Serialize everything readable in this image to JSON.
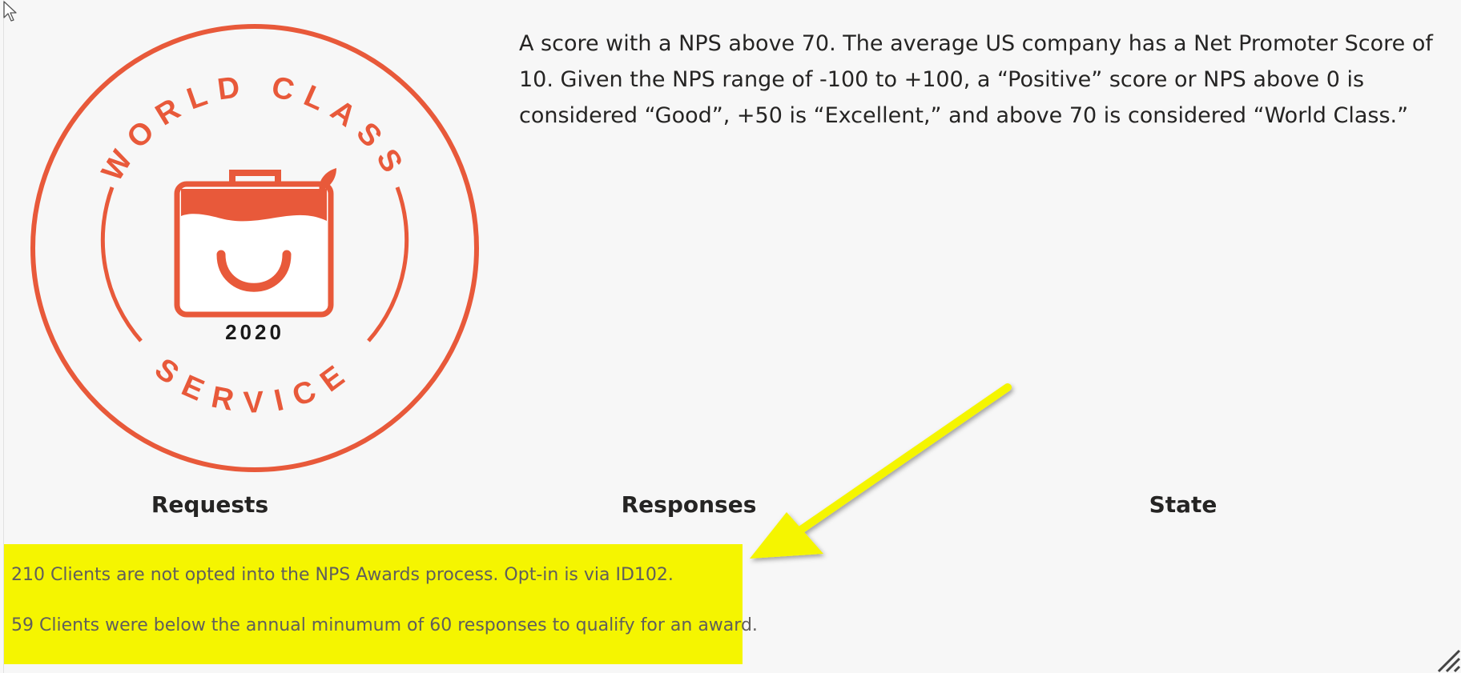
{
  "badge": {
    "top_text": "WORLD CLASS",
    "bottom_text": "SERVICE",
    "year": "2020",
    "accent_color": "#e8593a",
    "year_color": "#1a1a1a"
  },
  "nps_description": "A score with a NPS above 70. The average US company has a Net Promoter Score of 10. Given the NPS range of -100 to +100, a “Positive” score or NPS above 0 is considered “Good”, +50 is “Excellent,” and above 70 is considered “World Class.”",
  "columns": {
    "requests": "Requests",
    "responses": "Responses",
    "state": "State"
  },
  "notice": {
    "background": "#f5f500",
    "lines": [
      "210 Clients are not opted into the NPS Awards process. Opt-in is via ID102.",
      "59 Clients were below the annual minumum of 60 responses to qualify for an award."
    ]
  },
  "icons": {
    "cursor": "mouse-pointer-icon",
    "arrow": "yellow-callout-arrow",
    "grip": "resize-grip-icon"
  }
}
